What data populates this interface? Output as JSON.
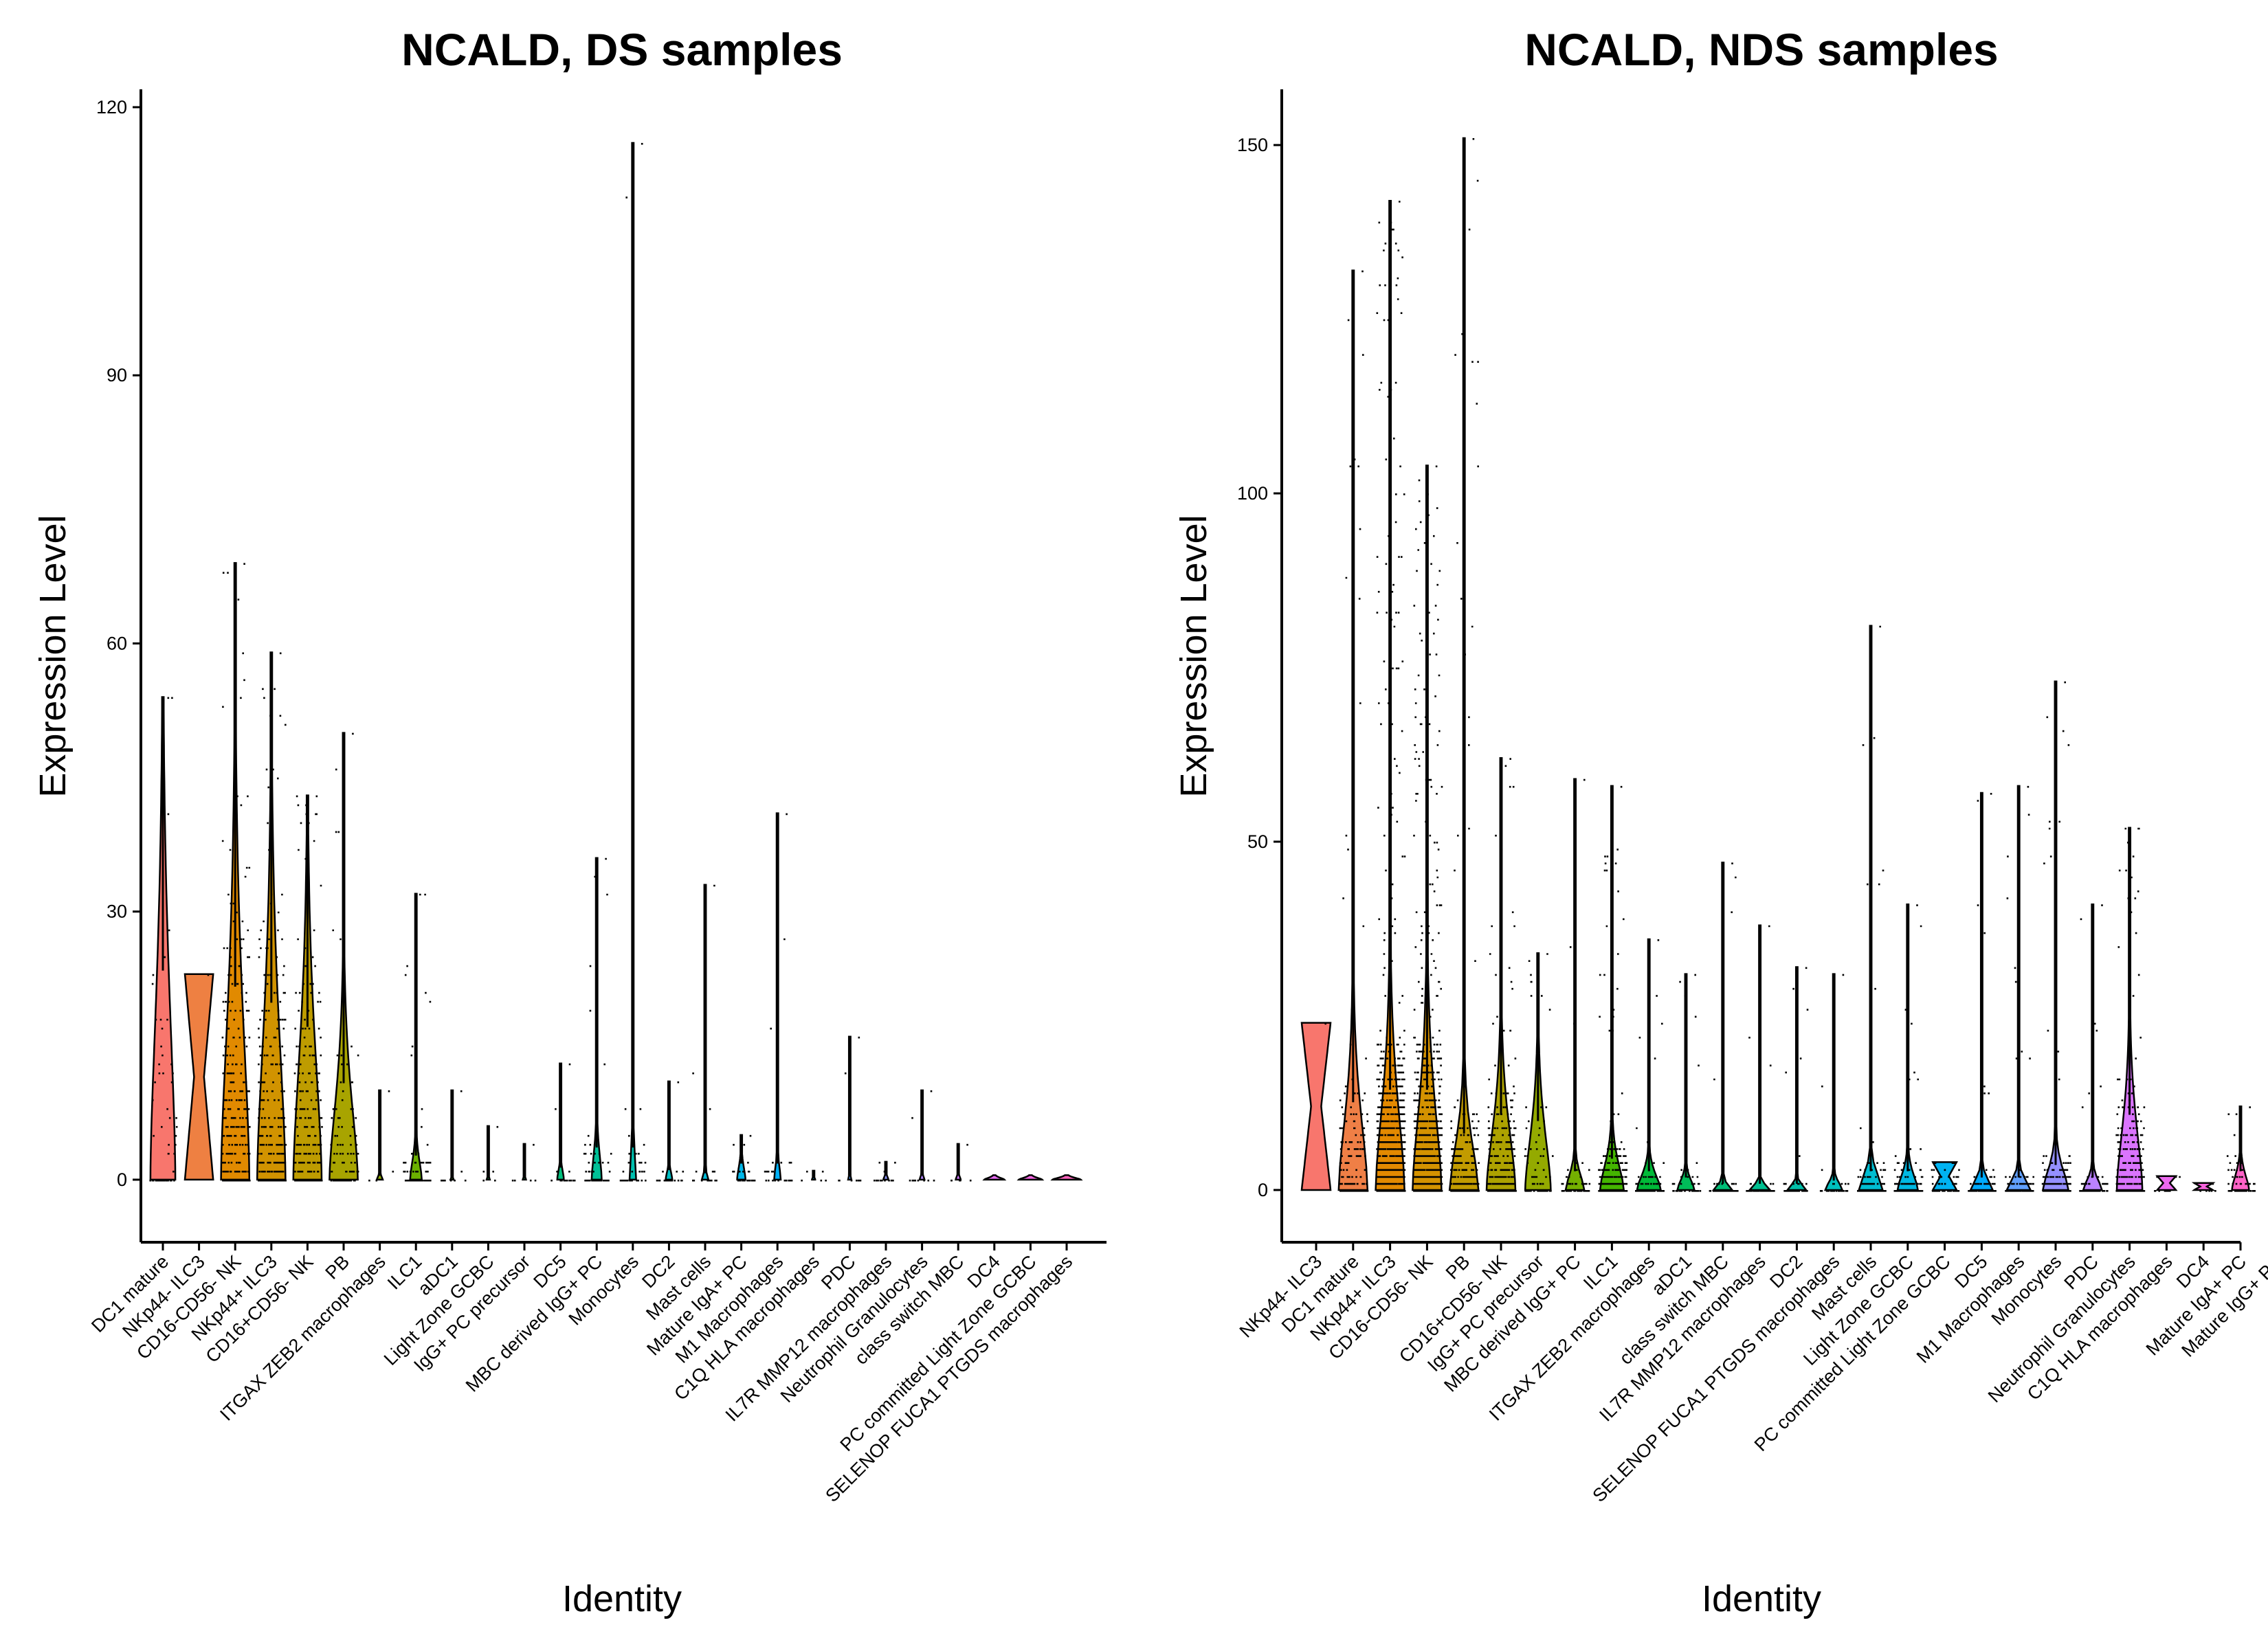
{
  "chart_data": [
    {
      "type": "violin",
      "title": "NCALD, DS samples",
      "xlabel": "Identity",
      "ylabel": "Expression Level",
      "ylim": [
        -7,
        122
      ],
      "yticks": [
        0,
        30,
        60,
        90,
        120
      ],
      "grid": false,
      "legend": "none",
      "categories": [
        "DC1 mature",
        "NKp44- ILC3",
        "CD16-CD56- NK",
        "NKp44+ ILC3",
        "CD16+CD56- NK",
        "PB",
        "ITGAX ZEB2 macrophages",
        "ILC1",
        "aDC1",
        "Light Zone GCBC",
        "IgG+ PC precursor",
        "DC5",
        "MBC derived IgG+ PC",
        "Monocytes",
        "DC2",
        "Mast cells",
        "Mature IgA+ PC",
        "M1 Macrophages",
        "C1Q HLA macrophages",
        "PDC",
        "IL7R MMP12 macrophages",
        "Neutrophil Granulocytes",
        "class switch MBC",
        "DC4",
        "PC committed Light Zone GCBC",
        "SELENOP FUCA1 PTGDS macrophages"
      ],
      "colors": [
        "#F8766D",
        "#EE8042",
        "#E18A00",
        "#D19300",
        "#BE9C00",
        "#A8A400",
        "#8EAB00",
        "#6BB100",
        "#38B600",
        "#00BA38",
        "#00BD5F",
        "#00BF7D",
        "#00C097",
        "#00C0AF",
        "#00BFC4",
        "#00BCD8",
        "#00B7E9",
        "#00B0F6",
        "#00A8FF",
        "#529EFF",
        "#8B93FF",
        "#B385FF",
        "#D177FE",
        "#E76BF3",
        "#F564E3",
        "#FF62BC"
      ],
      "max": [
        54,
        23,
        69,
        59,
        43,
        50,
        10,
        32,
        10,
        6,
        4,
        13,
        36,
        116,
        11,
        33,
        5,
        41,
        1,
        16,
        2,
        10,
        4,
        0,
        0,
        0
      ],
      "spread": [
        26,
        23,
        24,
        22,
        19,
        12,
        0.5,
        3,
        0.2,
        0.2,
        0.2,
        1.5,
        4,
        4,
        1.2,
        0.8,
        2,
        2,
        0.2,
        0.5,
        0.5,
        0.5,
        0.5,
        0.1,
        0.1,
        0.3
      ],
      "width": [
        0.75,
        0.85,
        0.85,
        0.85,
        0.85,
        0.85,
        0.18,
        0.35,
        0.1,
        0.1,
        0.1,
        0.2,
        0.3,
        0.2,
        0.2,
        0.2,
        0.25,
        0.2,
        0.1,
        0.1,
        0.15,
        0.15,
        0.15,
        0.6,
        0.7,
        0.85
      ],
      "density": [
        55,
        0,
        420,
        420,
        340,
        110,
        3,
        90,
        8,
        4,
        4,
        20,
        65,
        45,
        22,
        18,
        30,
        28,
        4,
        8,
        12,
        10,
        6,
        0,
        0,
        0
      ]
    },
    {
      "type": "violin",
      "title": "NCALD, NDS samples",
      "xlabel": "Identity",
      "ylabel": "Expression Level",
      "ylim": [
        -7.5,
        158
      ],
      "yticks": [
        0,
        50,
        100,
        150
      ],
      "grid": false,
      "legend": "none",
      "categories": [
        "NKp44- ILC3",
        "DC1 mature",
        "NKp44+ ILC3",
        "CD16-CD56- NK",
        "PB",
        "CD16+CD56- NK",
        "IgG+ PC precursor",
        "MBC derived IgG+ PC",
        "ILC1",
        "ITGAX ZEB2 macrophages",
        "aDC1",
        "class switch MBC",
        "IL7R MMP12 macrophages",
        "DC2",
        "SELENOP FUCA1 PTGDS macrophages",
        "Mast cells",
        "Light Zone GCBC",
        "PC committed Light Zone GCBC",
        "DC5",
        "M1 Macrophages",
        "Monocytes",
        "PDC",
        "Neutrophil Granulocytes",
        "C1Q HLA macrophages",
        "DC4",
        "Mature IgA+ PC",
        "Mature IgG+ PC"
      ],
      "colors": [
        "#F8766D",
        "#EF7F46",
        "#E38900",
        "#D49200",
        "#C29B00",
        "#ADA200",
        "#94AA00",
        "#74B000",
        "#44B500",
        "#00BA38",
        "#00BC59",
        "#00BF77",
        "#00C091",
        "#00C0A9",
        "#00C0BE",
        "#00BDD1",
        "#00B9E3",
        "#00B3F1",
        "#00ABFD",
        "#61A0FF",
        "#9590FF",
        "#BB82FF",
        "#DA74FD",
        "#EC69EF",
        "#F863DE",
        "#FF62C7",
        "#FF64AF"
      ],
      "max": [
        24,
        132,
        142,
        104,
        151,
        62,
        34,
        59,
        58,
        36,
        31,
        47,
        38,
        32,
        31,
        81,
        41,
        4,
        57,
        58,
        73,
        41,
        52,
        2,
        1,
        12,
        0
      ],
      "spread": [
        24,
        14,
        16,
        16,
        9,
        12,
        11,
        3,
        5,
        3,
        2,
        1,
        1,
        1,
        1.5,
        3,
        3,
        4,
        2,
        2,
        4,
        2,
        12,
        2,
        1,
        3,
        0.1
      ],
      "width": [
        0.85,
        0.85,
        0.85,
        0.85,
        0.85,
        0.85,
        0.75,
        0.55,
        0.7,
        0.7,
        0.5,
        0.55,
        0.6,
        0.55,
        0.5,
        0.7,
        0.6,
        0.7,
        0.65,
        0.7,
        0.75,
        0.55,
        0.75,
        0.55,
        0.55,
        0.5,
        0.25
      ],
      "density": [
        0,
        220,
        1600,
        1500,
        320,
        420,
        70,
        55,
        380,
        110,
        45,
        60,
        55,
        55,
        35,
        140,
        120,
        55,
        95,
        130,
        240,
        70,
        360,
        10,
        6,
        60,
        0
      ]
    }
  ]
}
